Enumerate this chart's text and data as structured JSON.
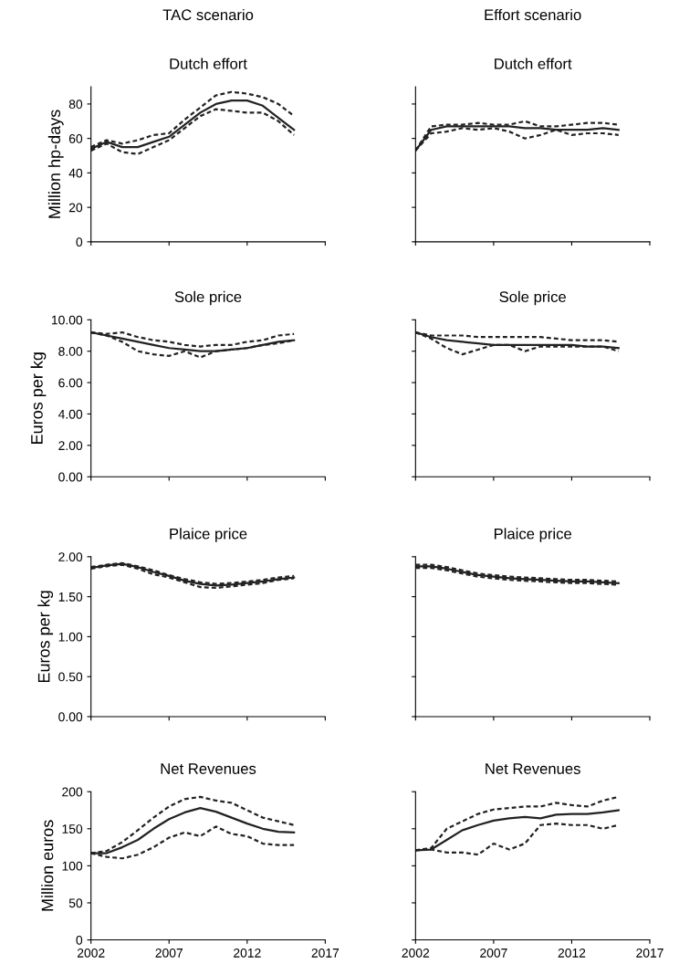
{
  "chart_data": [
    {
      "type": "line",
      "title": "Dutch effort",
      "ylabel": "Million hp-days",
      "annotations": [
        "TAC scenario"
      ],
      "x": [
        2002,
        2003,
        2004,
        2005,
        2006,
        2007,
        2008,
        2009,
        2010,
        2011,
        2012,
        2013,
        2014,
        2015
      ],
      "xlim": [
        2002,
        2017
      ],
      "xticks": [
        {
          "value": 2002,
          "label": null
        },
        {
          "value": 2007,
          "label": null
        },
        {
          "value": 2012,
          "label": null
        },
        {
          "value": 2017,
          "label": null
        }
      ],
      "ylim": [
        0,
        90
      ],
      "yticks": [
        0,
        20,
        40,
        60,
        80
      ],
      "tick_labels": "y",
      "grid": false,
      "legend": false,
      "series": [
        {
          "color": "#222222",
          "line_style": "solid",
          "values": [
            54,
            58,
            55,
            55,
            58,
            61,
            68,
            75,
            80,
            82,
            82,
            79,
            72,
            65
          ]
        },
        {
          "color": "#222222",
          "line_style": "dashed",
          "values": [
            55,
            59,
            57,
            59,
            62,
            63,
            71,
            78,
            85,
            87,
            86,
            84,
            80,
            73
          ]
        },
        {
          "color": "#222222",
          "line_style": "dashed",
          "values": [
            53,
            57,
            52,
            51,
            55,
            59,
            66,
            73,
            77,
            76,
            75,
            75,
            70,
            62
          ]
        }
      ]
    },
    {
      "type": "line",
      "title": "Dutch effort",
      "annotations": [
        "Effort scenario"
      ],
      "x": [
        2002,
        2003,
        2004,
        2005,
        2006,
        2007,
        2008,
        2009,
        2010,
        2011,
        2012,
        2013,
        2014,
        2015
      ],
      "xlim": [
        2002,
        2017
      ],
      "xticks": [
        {
          "value": 2002,
          "label": null
        },
        {
          "value": 2007,
          "label": null
        },
        {
          "value": 2012,
          "label": null
        },
        {
          "value": 2017,
          "label": null
        }
      ],
      "ylim": [
        0,
        90
      ],
      "yticks": [
        0,
        20,
        40,
        60,
        80
      ],
      "tick_labels": false,
      "grid": false,
      "legend": false,
      "series": [
        {
          "color": "#222222",
          "line_style": "solid",
          "values": [
            53,
            65,
            67,
            67,
            67,
            67,
            67,
            66,
            66,
            65,
            65,
            65,
            66,
            65
          ]
        },
        {
          "color": "#222222",
          "line_style": "dashed",
          "values": [
            53,
            67,
            68,
            68,
            69,
            68,
            68,
            70,
            67,
            67,
            68,
            69,
            69,
            68
          ]
        },
        {
          "color": "#222222",
          "line_style": "dashed",
          "values": [
            53,
            63,
            64,
            66,
            65,
            66,
            64,
            60,
            62,
            65,
            62,
            63,
            63,
            62
          ]
        }
      ]
    },
    {
      "type": "line",
      "title": "Sole price",
      "ylabel": "Euros per kg",
      "x": [
        2002,
        2003,
        2004,
        2005,
        2006,
        2007,
        2008,
        2009,
        2010,
        2011,
        2012,
        2013,
        2014,
        2015
      ],
      "xlim": [
        2002,
        2017
      ],
      "xticks": [
        {
          "value": 2002,
          "label": null
        },
        {
          "value": 2007,
          "label": null
        },
        {
          "value": 2012,
          "label": null
        },
        {
          "value": 2017,
          "label": null
        }
      ],
      "ylim": [
        0,
        10
      ],
      "yticks": [
        {
          "value": 0,
          "label": "0.00"
        },
        {
          "value": 2,
          "label": "2.00"
        },
        {
          "value": 4,
          "label": "4.00"
        },
        {
          "value": 6,
          "label": "6.00"
        },
        {
          "value": 8,
          "label": "8.00"
        },
        {
          "value": 10,
          "label": "10.00"
        }
      ],
      "tick_labels": "y",
      "grid": false,
      "legend": false,
      "series": [
        {
          "color": "#222222",
          "line_style": "solid",
          "values": [
            9.2,
            9.0,
            8.8,
            8.6,
            8.4,
            8.2,
            8.1,
            8.0,
            8.0,
            8.1,
            8.2,
            8.4,
            8.6,
            8.7
          ]
        },
        {
          "color": "#222222",
          "line_style": "dashed",
          "values": [
            9.2,
            9.1,
            9.2,
            8.9,
            8.7,
            8.6,
            8.4,
            8.3,
            8.4,
            8.4,
            8.6,
            8.7,
            9.0,
            9.1
          ]
        },
        {
          "color": "#222222",
          "line_style": "dashed",
          "values": [
            9.2,
            9.0,
            8.6,
            8.0,
            7.8,
            7.7,
            8.0,
            7.6,
            8.0,
            8.1,
            8.2,
            8.4,
            8.5,
            8.7
          ]
        }
      ]
    },
    {
      "type": "line",
      "title": "Sole price",
      "x": [
        2002,
        2003,
        2004,
        2005,
        2006,
        2007,
        2008,
        2009,
        2010,
        2011,
        2012,
        2013,
        2014,
        2015
      ],
      "xlim": [
        2002,
        2017
      ],
      "xticks": [
        {
          "value": 2002,
          "label": null
        },
        {
          "value": 2007,
          "label": null
        },
        {
          "value": 2012,
          "label": null
        },
        {
          "value": 2017,
          "label": null
        }
      ],
      "ylim": [
        0,
        10
      ],
      "yticks": [
        {
          "value": 0,
          "label": null
        },
        {
          "value": 2,
          "label": null
        },
        {
          "value": 4,
          "label": null
        },
        {
          "value": 6,
          "label": null
        },
        {
          "value": 8,
          "label": null
        },
        {
          "value": 10,
          "label": null
        }
      ],
      "tick_labels": false,
      "grid": false,
      "legend": false,
      "series": [
        {
          "color": "#222222",
          "line_style": "solid",
          "values": [
            9.2,
            8.9,
            8.7,
            8.6,
            8.5,
            8.4,
            8.4,
            8.4,
            8.4,
            8.4,
            8.4,
            8.3,
            8.3,
            8.2
          ]
        },
        {
          "color": "#222222",
          "line_style": "dashed",
          "values": [
            9.2,
            9.0,
            9.0,
            9.0,
            8.9,
            8.9,
            8.9,
            8.9,
            8.9,
            8.8,
            8.7,
            8.7,
            8.7,
            8.6
          ]
        },
        {
          "color": "#222222",
          "line_style": "dashed",
          "values": [
            9.2,
            8.8,
            8.2,
            7.8,
            8.1,
            8.4,
            8.4,
            8.0,
            8.3,
            8.3,
            8.3,
            8.3,
            8.3,
            8.0
          ]
        }
      ]
    },
    {
      "type": "line",
      "title": "Plaice price",
      "ylabel": "Euros per kg",
      "x": [
        2002,
        2003,
        2004,
        2005,
        2006,
        2007,
        2008,
        2009,
        2010,
        2011,
        2012,
        2013,
        2014,
        2015
      ],
      "xlim": [
        2002,
        2017
      ],
      "xticks": [
        {
          "value": 2002,
          "label": null
        },
        {
          "value": 2007,
          "label": null
        },
        {
          "value": 2012,
          "label": null
        },
        {
          "value": 2017,
          "label": null
        }
      ],
      "ylim": [
        0,
        2
      ],
      "yticks": [
        {
          "value": 0,
          "label": "0.00"
        },
        {
          "value": 0.5,
          "label": "0.50"
        },
        {
          "value": 1,
          "label": "1.00"
        },
        {
          "value": 1.5,
          "label": "1.50"
        },
        {
          "value": 2,
          "label": "2.00"
        }
      ],
      "tick_labels": "y",
      "grid": false,
      "legend": false,
      "series": [
        {
          "color": "#222222",
          "line_style": "solid",
          "values": [
            1.86,
            1.89,
            1.91,
            1.87,
            1.81,
            1.76,
            1.7,
            1.66,
            1.64,
            1.65,
            1.67,
            1.69,
            1.72,
            1.74
          ]
        },
        {
          "color": "#222222",
          "line_style": "dashed",
          "values": [
            1.87,
            1.9,
            1.92,
            1.88,
            1.83,
            1.77,
            1.72,
            1.68,
            1.66,
            1.67,
            1.69,
            1.71,
            1.74,
            1.76
          ]
        },
        {
          "color": "#222222",
          "line_style": "dashed",
          "values": [
            1.85,
            1.88,
            1.9,
            1.85,
            1.78,
            1.74,
            1.68,
            1.62,
            1.61,
            1.63,
            1.65,
            1.67,
            1.71,
            1.73
          ]
        }
      ]
    },
    {
      "type": "line",
      "title": "Plaice price",
      "x": [
        2002,
        2003,
        2004,
        2005,
        2006,
        2007,
        2008,
        2009,
        2010,
        2011,
        2012,
        2013,
        2014,
        2015
      ],
      "xlim": [
        2002,
        2017
      ],
      "xticks": [
        {
          "value": 2002,
          "label": null
        },
        {
          "value": 2007,
          "label": null
        },
        {
          "value": 2012,
          "label": null
        },
        {
          "value": 2017,
          "label": null
        }
      ],
      "ylim": [
        0,
        2
      ],
      "yticks": [
        {
          "value": 0,
          "label": null
        },
        {
          "value": 0.5,
          "label": null
        },
        {
          "value": 1,
          "label": null
        },
        {
          "value": 1.5,
          "label": null
        },
        {
          "value": 2,
          "label": null
        }
      ],
      "tick_labels": false,
      "grid": false,
      "legend": false,
      "series": [
        {
          "color": "#222222",
          "line_style": "solid",
          "values": [
            1.88,
            1.88,
            1.85,
            1.81,
            1.77,
            1.75,
            1.73,
            1.72,
            1.71,
            1.7,
            1.69,
            1.69,
            1.68,
            1.67
          ]
        },
        {
          "color": "#222222",
          "line_style": "dashed",
          "values": [
            1.9,
            1.9,
            1.87,
            1.83,
            1.79,
            1.77,
            1.75,
            1.74,
            1.73,
            1.72,
            1.71,
            1.71,
            1.7,
            1.69
          ]
        },
        {
          "color": "#222222",
          "line_style": "dashed",
          "values": [
            1.86,
            1.86,
            1.83,
            1.79,
            1.75,
            1.73,
            1.71,
            1.7,
            1.69,
            1.68,
            1.67,
            1.67,
            1.66,
            1.65
          ]
        }
      ]
    },
    {
      "type": "line",
      "title": "Net Revenues",
      "ylabel": "Million euros",
      "x": [
        2002,
        2003,
        2004,
        2005,
        2006,
        2007,
        2008,
        2009,
        2010,
        2011,
        2012,
        2013,
        2014,
        2015
      ],
      "xlim": [
        2002,
        2017
      ],
      "xticks": [
        2002,
        2007,
        2012,
        2017
      ],
      "ylim": [
        0,
        200
      ],
      "yticks": [
        0,
        50,
        100,
        150,
        200
      ],
      "grid": false,
      "legend": false,
      "series": [
        {
          "color": "#222222",
          "line_style": "solid",
          "values": [
            117,
            117,
            125,
            135,
            150,
            163,
            172,
            178,
            173,
            165,
            157,
            150,
            146,
            145
          ]
        },
        {
          "color": "#222222",
          "line_style": "dashed",
          "values": [
            117,
            120,
            132,
            148,
            165,
            180,
            190,
            193,
            188,
            185,
            175,
            165,
            160,
            155
          ]
        },
        {
          "color": "#222222",
          "line_style": "dashed",
          "values": [
            117,
            112,
            110,
            115,
            125,
            138,
            145,
            140,
            153,
            143,
            140,
            130,
            128,
            128
          ]
        }
      ]
    },
    {
      "type": "line",
      "title": "Net Revenues",
      "x": [
        2002,
        2003,
        2004,
        2005,
        2006,
        2007,
        2008,
        2009,
        2010,
        2011,
        2012,
        2013,
        2014,
        2015
      ],
      "xlim": [
        2002,
        2017
      ],
      "xticks": [
        2002,
        2007,
        2012,
        2017
      ],
      "ylim": [
        0,
        200
      ],
      "yticks": [
        0,
        50,
        100,
        150,
        200
      ],
      "tick_labels": "x",
      "grid": false,
      "legend": false,
      "series": [
        {
          "color": "#222222",
          "line_style": "solid",
          "values": [
            121,
            122,
            135,
            148,
            155,
            161,
            164,
            166,
            164,
            169,
            170,
            170,
            172,
            175
          ]
        },
        {
          "color": "#222222",
          "line_style": "dashed",
          "values": [
            121,
            124,
            150,
            160,
            170,
            176,
            178,
            180,
            180,
            185,
            182,
            180,
            188,
            193
          ]
        },
        {
          "color": "#222222",
          "line_style": "dashed",
          "values": [
            121,
            122,
            118,
            118,
            115,
            130,
            122,
            130,
            155,
            157,
            155,
            155,
            150,
            155
          ]
        }
      ]
    }
  ]
}
